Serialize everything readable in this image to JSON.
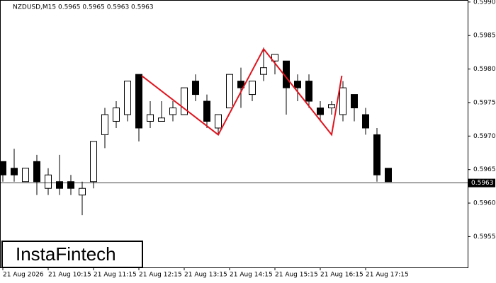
{
  "chart_data": {
    "type": "candlestick",
    "title": "NZDUSD,M15  0.5965 0.5965 0.5963 0.5963",
    "logo": "InstaFintech",
    "categories": [
      "21 Aug 2026",
      null,
      null,
      null,
      "21 Aug 10:15",
      null,
      null,
      null,
      "21 Aug 11:15",
      null,
      null,
      null,
      "21 Aug 12:15",
      null,
      null,
      null,
      "21 Aug 13:15",
      null,
      null,
      null,
      "21 Aug 14:15",
      null,
      null,
      null,
      "21 Aug 15:15",
      null,
      null,
      null,
      "21 Aug 16:15",
      null,
      null,
      null,
      "21 Aug 17:15",
      null,
      null
    ],
    "open": [
      0.59662,
      0.59652,
      0.59632,
      0.59662,
      0.59622,
      0.59632,
      0.59632,
      0.59612,
      0.59632,
      0.59702,
      0.59722,
      0.59732,
      0.59792,
      0.59722,
      0.59722,
      0.59732,
      0.59732,
      0.59782,
      0.59752,
      0.59712,
      0.59742,
      0.59782,
      0.59762,
      0.59792,
      0.59812,
      0.59812,
      0.59782,
      0.59782,
      0.59742,
      0.59742,
      0.59732,
      0.59762,
      0.59732,
      0.59702,
      0.59652
    ],
    "high": [
      0.59662,
      0.59681,
      0.59652,
      0.59672,
      0.59652,
      0.59672,
      0.59642,
      0.59632,
      0.59692,
      0.59742,
      0.59752,
      0.59782,
      0.59792,
      0.59752,
      0.59752,
      0.59752,
      0.59772,
      0.59792,
      0.59762,
      0.59732,
      0.59792,
      0.59802,
      0.59782,
      0.59832,
      0.59822,
      0.59812,
      0.59792,
      0.59792,
      0.59752,
      0.59752,
      0.59782,
      0.59762,
      0.59742,
      0.59712,
      0.59652
    ],
    "low": [
      0.59632,
      0.59632,
      0.59632,
      0.59612,
      0.59612,
      0.59612,
      0.59612,
      0.59582,
      0.59622,
      0.59682,
      0.59712,
      0.59722,
      0.59692,
      0.59712,
      0.59722,
      0.59722,
      0.59732,
      0.59752,
      0.59712,
      0.59702,
      0.59742,
      0.59742,
      0.59752,
      0.59782,
      0.59792,
      0.59732,
      0.59752,
      0.59742,
      0.59722,
      0.59732,
      0.59722,
      0.59722,
      0.59702,
      0.59632,
      0.59632
    ],
    "close": [
      0.59642,
      0.59642,
      0.59652,
      0.59632,
      0.59642,
      0.59622,
      0.59622,
      0.59622,
      0.59692,
      0.59732,
      0.59742,
      0.59782,
      0.59712,
      0.59732,
      0.59727,
      0.59742,
      0.59772,
      0.59762,
      0.59722,
      0.59732,
      0.59792,
      0.59772,
      0.59782,
      0.59802,
      0.59822,
      0.59772,
      0.59772,
      0.59752,
      0.59732,
      0.59747,
      0.59772,
      0.59742,
      0.59712,
      0.59642,
      0.59632
    ],
    "up_color": "#ffffff",
    "down_color": "#000000",
    "pattern": {
      "color": "#e0141e",
      "x": [
        12.25,
        19,
        23,
        29,
        29.9
      ],
      "values": [
        0.5979,
        0.59702,
        0.5983,
        0.59702,
        0.5979
      ]
    },
    "current_price": 0.5963,
    "ylim": [
      0.59504,
      0.59903
    ],
    "yticks": [
      {
        "value": 0.599,
        "label": "0.5990"
      },
      0.5985,
      {
        "value": 0.598,
        "label": "0.5980"
      },
      0.5975,
      {
        "value": 0.597,
        "label": "0.5970"
      },
      0.5965,
      {
        "value": 0.596,
        "label": "0.5960"
      },
      0.5955
    ]
  }
}
